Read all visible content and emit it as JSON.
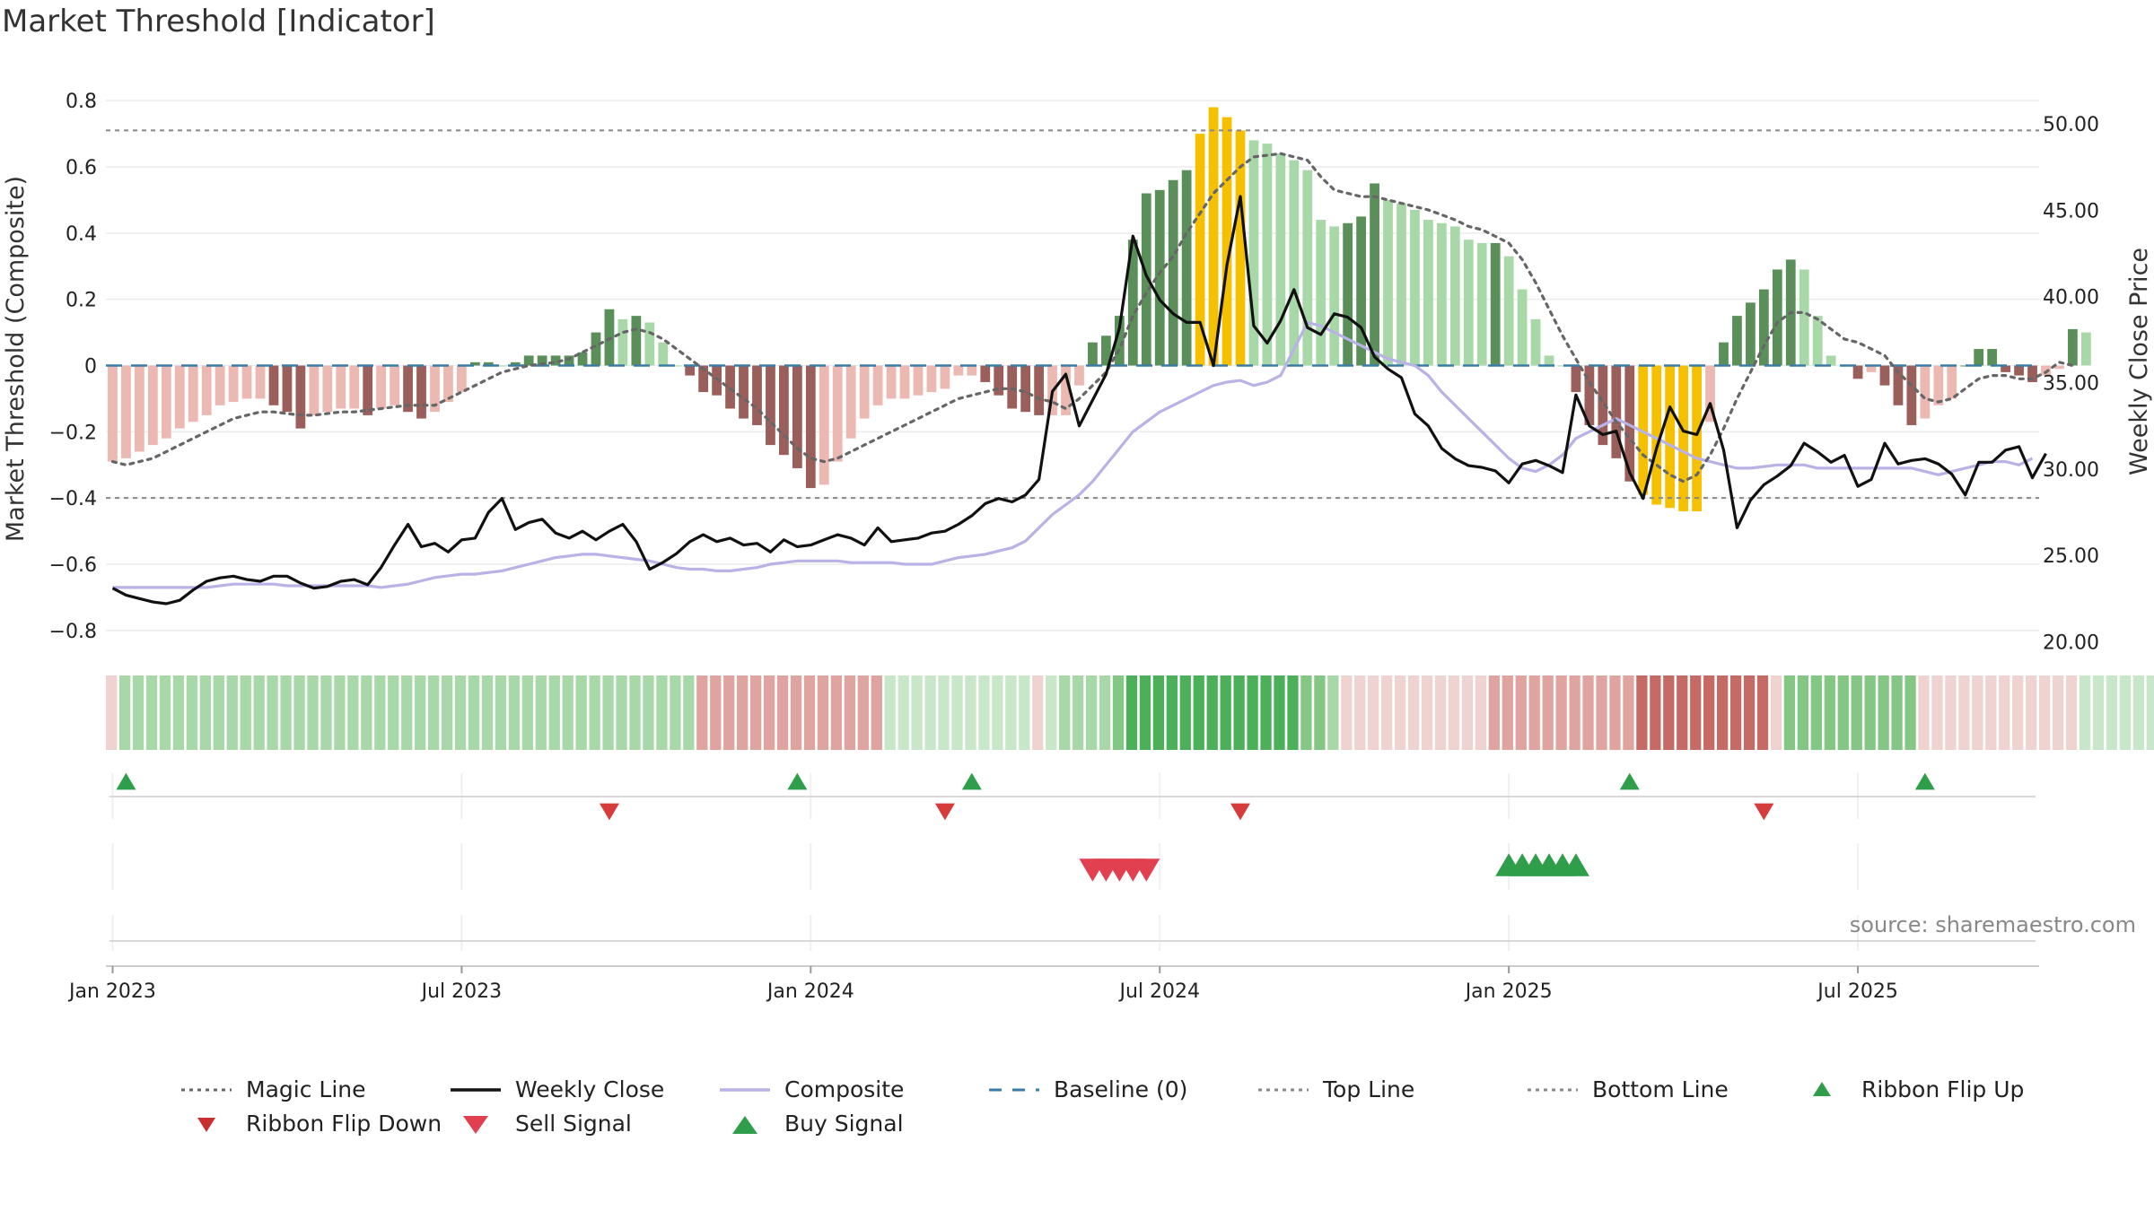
{
  "title": "Market Threshold [Indicator]",
  "source": "source: sharemaestro.com",
  "colors": {
    "pos_light": "#a8d8a8",
    "pos_dark": "#5a8f5a",
    "neg_light": "#ebb8b2",
    "neg_dark": "#9a5f5a",
    "extreme": "#f5c000",
    "close": "#111111",
    "composite": "#b8b2e6",
    "magic": "#666666",
    "baseline": "#3a7ca5",
    "guide": "#888888",
    "buy": "#2e9e4a",
    "sell": "#d63c3c"
  },
  "chart_data": {
    "type": "bar+line",
    "title": "Market Threshold [Indicator]",
    "ylabel_left": "Market Threshold (Composite)",
    "ylabel_right": "Weekly Close Price",
    "ylim_left": [
      -0.86,
      0.86
    ],
    "ylim_right": [
      19.5,
      52.5
    ],
    "yticks_left": [
      {
        "v": 0.8,
        "label": "0.8"
      },
      {
        "v": 0.6,
        "label": "0.6"
      },
      {
        "v": 0.4,
        "label": "0.4"
      },
      {
        "v": 0.2,
        "label": "0.2"
      },
      {
        "v": 0,
        "label": "0"
      },
      {
        "v": -0.2,
        "label": "−0.2"
      },
      {
        "v": -0.4,
        "label": "−0.4"
      },
      {
        "v": -0.6,
        "label": "−0.6"
      },
      {
        "v": -0.8,
        "label": "−0.8"
      }
    ],
    "yticks_right": [
      {
        "v": 50,
        "label": "50.00"
      },
      {
        "v": 45,
        "label": "45.00"
      },
      {
        "v": 40,
        "label": "40.00"
      },
      {
        "v": 35,
        "label": "35.00"
      },
      {
        "v": 30,
        "label": "30.00"
      },
      {
        "v": 25,
        "label": "25.00"
      },
      {
        "v": 20,
        "label": "20.00"
      }
    ],
    "xticks": [
      {
        "label": "Jan 2023",
        "week": 1
      },
      {
        "label": "Jul 2023",
        "week": 27
      },
      {
        "label": "Jan 2024",
        "week": 53
      },
      {
        "label": "Jul 2024",
        "week": 79
      },
      {
        "label": "Jan 2025",
        "week": 105
      },
      {
        "label": "Jul 2025",
        "week": 131
      }
    ],
    "n_weeks": 144,
    "top_line": 0.71,
    "bottom_line": -0.4,
    "composite_bars": [
      -0.29,
      -0.28,
      -0.26,
      -0.24,
      -0.22,
      -0.19,
      -0.17,
      -0.15,
      -0.12,
      -0.11,
      -0.1,
      -0.1,
      -0.12,
      -0.14,
      -0.19,
      -0.15,
      -0.14,
      -0.13,
      -0.13,
      -0.15,
      -0.13,
      -0.12,
      -0.14,
      -0.16,
      -0.14,
      -0.11,
      -0.08,
      0.01,
      0.01,
      0.0,
      0.01,
      0.03,
      0.03,
      0.03,
      0.03,
      0.04,
      0.1,
      0.17,
      0.14,
      0.15,
      0.13,
      0.07,
      0.0,
      -0.03,
      -0.08,
      -0.09,
      -0.13,
      -0.16,
      -0.18,
      -0.24,
      -0.27,
      -0.31,
      -0.37,
      -0.36,
      -0.29,
      -0.22,
      -0.16,
      -0.12,
      -0.1,
      -0.1,
      -0.09,
      -0.08,
      -0.07,
      -0.03,
      -0.03,
      -0.05,
      -0.09,
      -0.13,
      -0.14,
      -0.15,
      -0.15,
      -0.15,
      -0.06,
      0.07,
      0.09,
      0.15,
      0.38,
      0.52,
      0.53,
      0.56,
      0.59,
      0.7,
      0.78,
      0.75,
      0.71,
      0.68,
      0.67,
      0.64,
      0.62,
      0.59,
      0.44,
      0.42,
      0.43,
      0.45,
      0.55,
      0.5,
      0.49,
      0.47,
      0.44,
      0.43,
      0.42,
      0.38,
      0.37,
      0.37,
      0.33,
      0.23,
      0.14,
      0.03,
      0.0,
      -0.08,
      -0.18,
      -0.24,
      -0.28,
      -0.35,
      -0.39,
      -0.42,
      -0.43,
      -0.44,
      -0.44,
      -0.17,
      0.07,
      0.15,
      0.19,
      0.23,
      0.29,
      0.32,
      0.29,
      0.15,
      0.03,
      0.0,
      -0.04,
      -0.02,
      -0.06,
      -0.12,
      -0.18,
      -0.16,
      -0.12,
      -0.1,
      0.0,
      0.05,
      0.05,
      -0.02,
      -0.03,
      -0.05,
      -0.03,
      -0.01,
      0.11,
      0.1
    ],
    "weekly_close": [
      23.1,
      22.7,
      22.5,
      22.3,
      22.2,
      22.4,
      23.0,
      23.5,
      23.7,
      23.8,
      23.6,
      23.5,
      23.8,
      23.8,
      23.4,
      23.1,
      23.2,
      23.5,
      23.6,
      23.3,
      24.3,
      25.6,
      26.8,
      25.5,
      25.7,
      25.2,
      25.9,
      26.0,
      27.5,
      28.3,
      26.5,
      26.9,
      27.1,
      26.3,
      26.0,
      26.4,
      25.9,
      26.4,
      26.8,
      25.8,
      24.2,
      24.6,
      25.1,
      25.8,
      26.2,
      25.8,
      26.0,
      25.6,
      25.7,
      25.2,
      25.9,
      25.5,
      25.6,
      25.9,
      26.2,
      26.0,
      25.6,
      26.6,
      25.8,
      25.9,
      26.0,
      26.3,
      26.4,
      26.8,
      27.3,
      28.0,
      28.3,
      28.1,
      28.5,
      29.4,
      34.5,
      35.5,
      32.5,
      34.0,
      35.5,
      38.2,
      43.5,
      41.2,
      39.8,
      39.0,
      38.5,
      38.5,
      36.0,
      41.8,
      45.8,
      38.3,
      37.3,
      38.6,
      40.4,
      38.2,
      37.8,
      39.0,
      38.8,
      38.2,
      36.5,
      35.8,
      35.3,
      33.2,
      32.5,
      31.2,
      30.6,
      30.2,
      30.1,
      29.9,
      29.2,
      30.3,
      30.5,
      30.2,
      29.8,
      34.3,
      32.5,
      32.0,
      32.2,
      29.8,
      28.3,
      31.2,
      33.6,
      32.2,
      32.0,
      33.8,
      31.1,
      26.6,
      28.2,
      29.1,
      29.6,
      30.2,
      31.5,
      31.0,
      30.4,
      30.8,
      29.0,
      29.4,
      31.5,
      30.3,
      30.5,
      30.6,
      30.3,
      29.7,
      28.5,
      30.4,
      30.4,
      31.1,
      31.3,
      29.5,
      30.9
    ],
    "composite_line": [
      -0.67,
      -0.67,
      -0.67,
      -0.67,
      -0.67,
      -0.67,
      -0.67,
      -0.67,
      -0.665,
      -0.66,
      -0.66,
      -0.66,
      -0.66,
      -0.665,
      -0.665,
      -0.665,
      -0.665,
      -0.665,
      -0.665,
      -0.665,
      -0.67,
      -0.665,
      -0.66,
      -0.65,
      -0.64,
      -0.635,
      -0.63,
      -0.63,
      -0.625,
      -0.62,
      -0.61,
      -0.6,
      -0.59,
      -0.58,
      -0.575,
      -0.57,
      -0.57,
      -0.575,
      -0.58,
      -0.585,
      -0.59,
      -0.6,
      -0.61,
      -0.615,
      -0.615,
      -0.62,
      -0.62,
      -0.615,
      -0.61,
      -0.6,
      -0.595,
      -0.59,
      -0.59,
      -0.59,
      -0.59,
      -0.595,
      -0.595,
      -0.595,
      -0.595,
      -0.6,
      -0.6,
      -0.6,
      -0.59,
      -0.58,
      -0.575,
      -0.57,
      -0.56,
      -0.55,
      -0.53,
      -0.49,
      -0.45,
      -0.42,
      -0.39,
      -0.35,
      -0.3,
      -0.25,
      -0.2,
      -0.17,
      -0.14,
      -0.12,
      -0.1,
      -0.08,
      -0.06,
      -0.05,
      -0.045,
      -0.06,
      -0.05,
      -0.03,
      0.05,
      0.13,
      0.12,
      0.1,
      0.08,
      0.06,
      0.04,
      0.02,
      0.01,
      0.0,
      -0.03,
      -0.08,
      -0.12,
      -0.16,
      -0.2,
      -0.24,
      -0.28,
      -0.31,
      -0.32,
      -0.3,
      -0.27,
      -0.22,
      -0.2,
      -0.18,
      -0.16,
      -0.18,
      -0.2,
      -0.22,
      -0.24,
      -0.26,
      -0.28,
      -0.29,
      -0.3,
      -0.31,
      -0.31,
      -0.305,
      -0.3,
      -0.3,
      -0.3,
      -0.31,
      -0.31,
      -0.31,
      -0.31,
      -0.31,
      -0.31,
      -0.31,
      -0.31,
      -0.32,
      -0.33,
      -0.32,
      -0.31,
      -0.3,
      -0.29,
      -0.29,
      -0.3,
      -0.28
    ],
    "magic_line": [
      -0.29,
      -0.3,
      -0.29,
      -0.28,
      -0.26,
      -0.24,
      -0.22,
      -0.2,
      -0.18,
      -0.16,
      -0.15,
      -0.14,
      -0.14,
      -0.145,
      -0.15,
      -0.15,
      -0.145,
      -0.14,
      -0.14,
      -0.135,
      -0.13,
      -0.125,
      -0.12,
      -0.12,
      -0.12,
      -0.1,
      -0.08,
      -0.06,
      -0.04,
      -0.02,
      -0.01,
      0.0,
      0.005,
      0.01,
      0.02,
      0.04,
      0.06,
      0.08,
      0.1,
      0.11,
      0.1,
      0.08,
      0.05,
      0.02,
      -0.01,
      -0.04,
      -0.07,
      -0.1,
      -0.13,
      -0.17,
      -0.21,
      -0.25,
      -0.28,
      -0.29,
      -0.28,
      -0.26,
      -0.24,
      -0.22,
      -0.2,
      -0.18,
      -0.16,
      -0.14,
      -0.12,
      -0.1,
      -0.09,
      -0.08,
      -0.07,
      -0.07,
      -0.08,
      -0.1,
      -0.11,
      -0.13,
      -0.1,
      -0.06,
      -0.02,
      0.05,
      0.15,
      0.22,
      0.28,
      0.33,
      0.4,
      0.46,
      0.52,
      0.56,
      0.6,
      0.63,
      0.635,
      0.64,
      0.63,
      0.62,
      0.57,
      0.53,
      0.52,
      0.51,
      0.51,
      0.5,
      0.49,
      0.48,
      0.47,
      0.455,
      0.44,
      0.42,
      0.41,
      0.39,
      0.37,
      0.32,
      0.25,
      0.17,
      0.09,
      0.02,
      -0.05,
      -0.11,
      -0.17,
      -0.22,
      -0.27,
      -0.3,
      -0.33,
      -0.35,
      -0.33,
      -0.27,
      -0.19,
      -0.1,
      -0.02,
      0.06,
      0.13,
      0.16,
      0.16,
      0.14,
      0.11,
      0.08,
      0.07,
      0.05,
      0.03,
      -0.02,
      -0.06,
      -0.1,
      -0.11,
      -0.1,
      -0.07,
      -0.04,
      -0.03,
      -0.03,
      -0.04,
      -0.04,
      -0.02,
      0.01,
      0.0
    ],
    "ribbon": [
      -1,
      2,
      2,
      2,
      2,
      2,
      2,
      2,
      2,
      2,
      2,
      2,
      2,
      2,
      2,
      2,
      2,
      2,
      2,
      2,
      2,
      2,
      2,
      2,
      2,
      2,
      2,
      2,
      2,
      2,
      2,
      2,
      2,
      2,
      2,
      2,
      2,
      2,
      2,
      2,
      2,
      2,
      2,
      2,
      -2,
      -2,
      -2,
      -2,
      -2,
      -2,
      -2,
      -2,
      -2,
      -2,
      -2,
      -2,
      -2,
      -2,
      1,
      1,
      1,
      1,
      1,
      1,
      1,
      1,
      1,
      1,
      1,
      -1,
      1,
      2,
      2,
      2,
      2,
      3,
      4,
      4,
      4,
      4,
      4,
      4,
      4,
      4,
      4,
      4,
      4,
      4,
      4,
      3,
      3,
      2,
      -1,
      -1,
      -1,
      -1,
      -1,
      -1,
      -1,
      -1,
      -1,
      -1,
      -1,
      -2,
      -2,
      -2,
      -2,
      -2,
      -2,
      -2,
      -2,
      -2,
      -2,
      -2,
      -3,
      -3,
      -3,
      -3,
      -3,
      -3,
      -3,
      -3,
      -3,
      -3,
      -1,
      3,
      3,
      3,
      3,
      3,
      3,
      3,
      3,
      3,
      3,
      -1,
      -1,
      -1,
      -1,
      -1,
      -1,
      -1,
      -1,
      -1,
      -1,
      -1,
      -1,
      1,
      1,
      1,
      1,
      1,
      1,
      1,
      1
    ],
    "ribbon_flip_up_weeks": [
      2,
      52,
      65,
      114,
      136
    ],
    "ribbon_flip_down_weeks": [
      38,
      63,
      85,
      124
    ],
    "sell_signal_weeks": [
      74,
      75,
      76,
      77,
      78
    ],
    "buy_signal_weeks": [
      105,
      106,
      107,
      108,
      109,
      110
    ],
    "legend": [
      {
        "label": "Magic Line",
        "kind": "dotted",
        "color": "#666666"
      },
      {
        "label": "Weekly Close",
        "kind": "solid",
        "color": "#111111"
      },
      {
        "label": "Composite",
        "kind": "solid",
        "color": "#b8b2e6"
      },
      {
        "label": "Baseline (0)",
        "kind": "dashed",
        "color": "#3a7ca5"
      },
      {
        "label": "Top Line",
        "kind": "dotted",
        "color": "#888888"
      },
      {
        "label": "Bottom Line",
        "kind": "dotted",
        "color": "#888888"
      },
      {
        "label": "Ribbon Flip Up",
        "kind": "tri-up",
        "color": "#2e9e4a"
      },
      {
        "label": "Ribbon Flip Down",
        "kind": "tri-down",
        "color": "#c83030"
      },
      {
        "label": "Sell Signal",
        "kind": "tri-down-big",
        "color": "#e04050"
      },
      {
        "label": "Buy Signal",
        "kind": "tri-up-big",
        "color": "#2e9e4a"
      }
    ]
  }
}
